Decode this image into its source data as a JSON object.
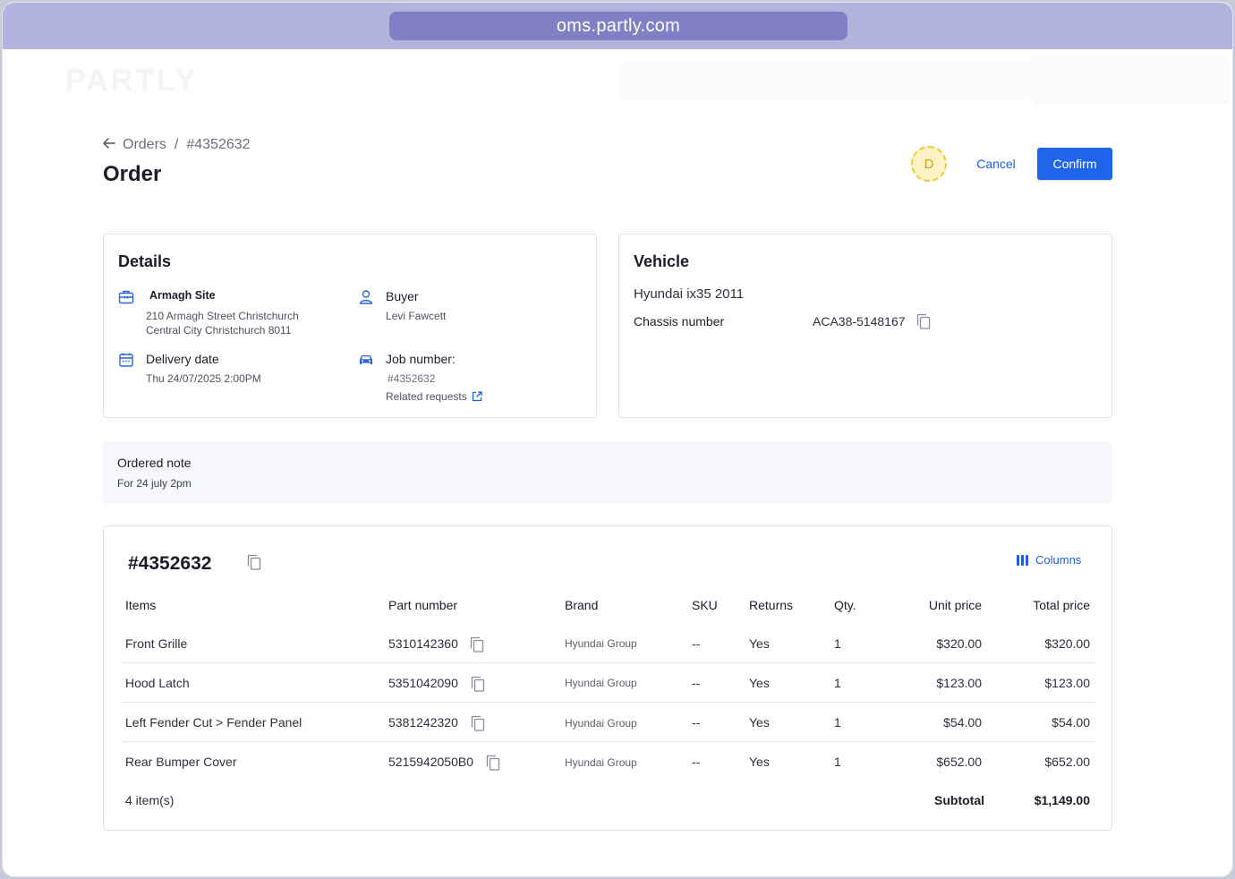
{
  "browser": {
    "url": "oms.partly.com"
  },
  "app": {
    "logo_text": "PARTLY"
  },
  "breadcrumb": {
    "parent": "Orders",
    "separator": "/",
    "current": "#4352632"
  },
  "page": {
    "title": "Order"
  },
  "header_actions": {
    "avatar_initial": "D",
    "cancel_label": "Cancel",
    "confirm_label": "Confirm"
  },
  "details": {
    "title": "Details",
    "site_label": "Armagh Site",
    "site_address_line1": "210 Armagh Street Christchurch",
    "site_address_line2": "Central City Christchurch 8011",
    "buyer_label": "Buyer",
    "buyer_name": "Levi Fawcett",
    "delivery_label": "Delivery date",
    "delivery_value": "Thu 24/07/2025 2:00PM",
    "job_label": "Job number:",
    "job_value": "#4352632",
    "related_link": "Related requests"
  },
  "vehicle": {
    "title": "Vehicle",
    "name": "Hyundai ix35 2011",
    "chassis_label": "Chassis number",
    "chassis_value": "ACA38-5148167"
  },
  "note": {
    "title": "Ordered note",
    "text": "For 24 july 2pm"
  },
  "items_table": {
    "order_number": "#4352632",
    "columns_button": "Columns",
    "headers": {
      "items": "Items",
      "part_number": "Part number",
      "brand": "Brand",
      "sku": "SKU",
      "returns": "Returns",
      "qty": "Qty.",
      "unit_price": "Unit price",
      "total_price": "Total price"
    },
    "rows": [
      {
        "item": "Front Grille",
        "part_number": "5310142360",
        "brand": "Hyundai Group",
        "sku": "--",
        "returns": "Yes",
        "qty": "1",
        "unit_price": "$320.00",
        "total_price": "$320.00"
      },
      {
        "item": "Hood Latch",
        "part_number": "5351042090",
        "brand": "Hyundai Group",
        "sku": "--",
        "returns": "Yes",
        "qty": "1",
        "unit_price": "$123.00",
        "total_price": "$123.00"
      },
      {
        "item": "Left Fender Cut > Fender Panel",
        "part_number": "5381242320",
        "brand": "Hyundai Group",
        "sku": "--",
        "returns": "Yes",
        "qty": "1",
        "unit_price": "$54.00",
        "total_price": "$54.00"
      },
      {
        "item": "Rear Bumper Cover",
        "part_number": "5215942050B0",
        "brand": "Hyundai Group",
        "sku": "--",
        "returns": "Yes",
        "qty": "1",
        "unit_price": "$652.00",
        "total_price": "$652.00"
      }
    ],
    "footer": {
      "count": "4 item(s)",
      "subtotal_label": "Subtotal",
      "subtotal_value": "$1,149.00"
    }
  },
  "colors": {
    "accent": "#1f64ea",
    "browser_bar": "#b3b4dd",
    "url_pill": "#7f80c5",
    "avatar_bg": "#fdf3c4"
  },
  "icons": {
    "back": "arrow-left-icon",
    "site": "briefcase-icon",
    "buyer": "user-icon",
    "delivery": "calendar-icon",
    "job": "car-icon",
    "external": "external-link-icon",
    "copy": "copy-icon",
    "columns": "columns-icon"
  }
}
